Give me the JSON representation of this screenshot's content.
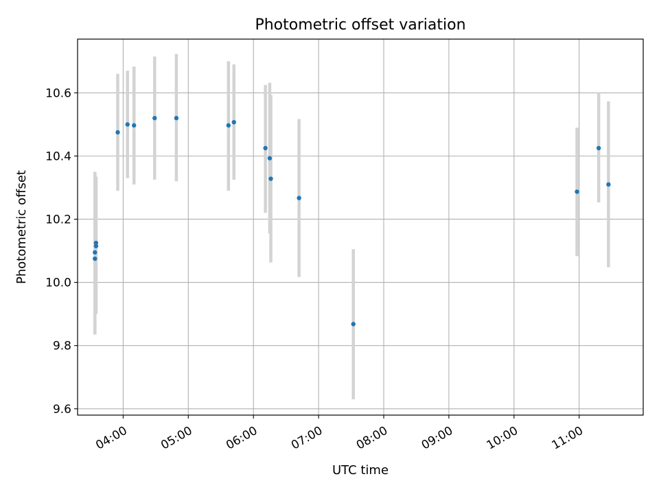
{
  "chart_data": {
    "type": "scatter",
    "title": "Photometric offset variation",
    "xlabel": "UTC time",
    "ylabel": "Photometric offset",
    "x_tick_labels": [
      "04:00",
      "05:00",
      "06:00",
      "07:00",
      "08:00",
      "09:00",
      "10:00",
      "11:00"
    ],
    "y_tick_labels": [
      "9.6",
      "9.8",
      "10.0",
      "10.2",
      "10.4",
      "10.6"
    ],
    "x_ticks": [
      "04:00",
      "05:00",
      "06:00",
      "07:00",
      "08:00",
      "09:00",
      "10:00",
      "11:00"
    ],
    "y_ticks": [
      9.6,
      9.8,
      10.0,
      10.2,
      10.4,
      10.6
    ],
    "xlim": [
      "03:18",
      "11:59"
    ],
    "ylim": [
      9.58,
      10.77
    ],
    "grid": true,
    "colors": {
      "point": "#1f77b4",
      "errorbar": "#d3d3d3",
      "grid": "#b0b0b0"
    },
    "points": [
      {
        "x": "03:34",
        "y": 10.075,
        "yerr_low": 9.835,
        "yerr_high": 10.35
      },
      {
        "x": "03:34",
        "y": 10.095,
        "yerr_low": 9.84,
        "yerr_high": 10.345
      },
      {
        "x": "03:35",
        "y": 10.115,
        "yerr_low": 9.9,
        "yerr_high": 10.335
      },
      {
        "x": "03:35",
        "y": 10.125,
        "yerr_low": 9.91,
        "yerr_high": 10.33
      },
      {
        "x": "03:55",
        "y": 10.475,
        "yerr_low": 10.29,
        "yerr_high": 10.66
      },
      {
        "x": "04:04",
        "y": 10.5,
        "yerr_low": 10.33,
        "yerr_high": 10.67
      },
      {
        "x": "04:10",
        "y": 10.497,
        "yerr_low": 10.31,
        "yerr_high": 10.683
      },
      {
        "x": "04:29",
        "y": 10.52,
        "yerr_low": 10.325,
        "yerr_high": 10.715
      },
      {
        "x": "04:49",
        "y": 10.52,
        "yerr_low": 10.32,
        "yerr_high": 10.723
      },
      {
        "x": "05:37",
        "y": 10.497,
        "yerr_low": 10.29,
        "yerr_high": 10.7
      },
      {
        "x": "05:42",
        "y": 10.507,
        "yerr_low": 10.325,
        "yerr_high": 10.69
      },
      {
        "x": "06:11",
        "y": 10.425,
        "yerr_low": 10.22,
        "yerr_high": 10.625
      },
      {
        "x": "06:15",
        "y": 10.393,
        "yerr_low": 10.155,
        "yerr_high": 10.632
      },
      {
        "x": "06:16",
        "y": 10.328,
        "yerr_low": 10.063,
        "yerr_high": 10.593
      },
      {
        "x": "06:42",
        "y": 10.267,
        "yerr_low": 10.017,
        "yerr_high": 10.517
      },
      {
        "x": "07:32",
        "y": 9.868,
        "yerr_low": 9.63,
        "yerr_high": 10.105
      },
      {
        "x": "10:58",
        "y": 10.287,
        "yerr_low": 10.083,
        "yerr_high": 10.49
      },
      {
        "x": "11:18",
        "y": 10.425,
        "yerr_low": 10.253,
        "yerr_high": 10.6
      },
      {
        "x": "11:27",
        "y": 10.31,
        "yerr_low": 10.048,
        "yerr_high": 10.573
      }
    ]
  }
}
